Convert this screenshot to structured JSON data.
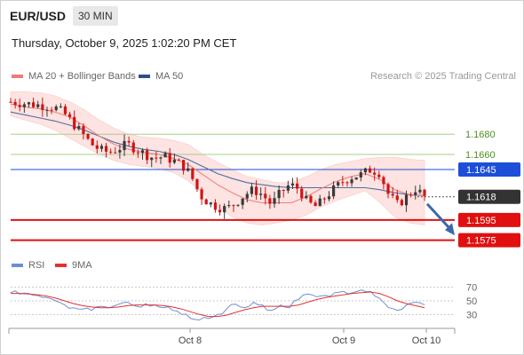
{
  "header": {
    "symbol": "EUR/USD",
    "interval": "30 MIN",
    "timestamp": "Thursday, October 9, 2025 1:02:20 PM CET"
  },
  "legend": {
    "ma_bb": "MA 20 + Bollinger Bands",
    "ma50": "MA 50",
    "copyright": "Research © 2025 Trading Central",
    "rsi": "RSI",
    "rsi_ma": "9MA"
  },
  "colors": {
    "up_candle": "#3a3a3a",
    "down_candle": "#d11414",
    "bollinger_fill": "#fde3e1",
    "ma20": "#f07a75",
    "ma50": "#4c6fa5",
    "resistance": "#a7cf8d",
    "resistance_label": "#4d8f1f",
    "pivot": "#1d4ed8",
    "support": "#e01010",
    "current_price": "#333333",
    "arrow": "#3b6aa6",
    "rsi": "#6b8fd4",
    "rsi_ma": "#e53030"
  },
  "chart_data": [
    {
      "type": "candlestick",
      "title": "EUR/USD 30 MIN",
      "xlabel": "",
      "ylabel": "",
      "x_ticks": [
        "Oct 8",
        "Oct 9",
        "Oct 10"
      ],
      "ylim": [
        1.1565,
        1.1725
      ],
      "grid": false,
      "levels": [
        {
          "label": "1.1680",
          "value": 1.168,
          "kind": "resistance"
        },
        {
          "label": "1.1660",
          "value": 1.166,
          "kind": "resistance"
        },
        {
          "label": "1.1645",
          "value": 1.1645,
          "kind": "pivot"
        },
        {
          "label": "1.1618",
          "value": 1.1618,
          "kind": "current"
        },
        {
          "label": "1.1595",
          "value": 1.1595,
          "kind": "support"
        },
        {
          "label": "1.1575",
          "value": 1.1575,
          "kind": "support"
        }
      ],
      "ma20_close_path": [
        1.171,
        1.1707,
        1.1705,
        1.1702,
        1.1697,
        1.1688,
        1.1678,
        1.167,
        1.1665,
        1.1662,
        1.166,
        1.1656,
        1.165,
        1.164,
        1.163,
        1.1622,
        1.1615,
        1.1612,
        1.1612,
        1.1612,
        1.1618,
        1.1626,
        1.1633,
        1.1638,
        1.1641,
        1.1635,
        1.1625,
        1.162,
        1.1619
      ],
      "bollinger_upper": [
        1.1722,
        1.1722,
        1.1721,
        1.1718,
        1.1712,
        1.1704,
        1.1694,
        1.1686,
        1.168,
        1.1677,
        1.1676,
        1.1674,
        1.167,
        1.166,
        1.1652,
        1.1645,
        1.1638,
        1.1635,
        1.1632,
        1.1632,
        1.1638,
        1.1645,
        1.165,
        1.1653,
        1.1656,
        1.1657,
        1.1657,
        1.1655,
        1.1654
      ],
      "bollinger_lower": [
        1.1698,
        1.1694,
        1.169,
        1.1684,
        1.1676,
        1.1668,
        1.166,
        1.1654,
        1.165,
        1.1648,
        1.1646,
        1.1642,
        1.1634,
        1.1622,
        1.1608,
        1.1598,
        1.1592,
        1.159,
        1.1592,
        1.1595,
        1.16,
        1.1608,
        1.1614,
        1.1619,
        1.1624,
        1.1612,
        1.1598,
        1.1592,
        1.159
      ],
      "ma50": [
        1.1702,
        1.1699,
        1.1696,
        1.1693,
        1.1689,
        1.1684,
        1.1678,
        1.1672,
        1.1668,
        1.1665,
        1.1663,
        1.166,
        1.1655,
        1.1648,
        1.1641,
        1.1636,
        1.1632,
        1.163,
        1.1628,
        1.1627,
        1.1627,
        1.1627,
        1.1627,
        1.1627,
        1.1627,
        1.1625,
        1.1622,
        1.162,
        1.1619
      ],
      "close_path": [
        1.1712,
        1.1711,
        1.171,
        1.1709,
        1.1708,
        1.1706,
        1.17,
        1.169,
        1.168,
        1.167,
        1.1664,
        1.1662,
        1.1666,
        1.167,
        1.1665,
        1.166,
        1.1656,
        1.1658,
        1.1654,
        1.165,
        1.164,
        1.162,
        1.1612,
        1.1608,
        1.1606,
        1.1612,
        1.162,
        1.1625,
        1.162,
        1.161,
        1.1622,
        1.163,
        1.1626,
        1.1612,
        1.1608,
        1.1618,
        1.1626,
        1.1634,
        1.1638,
        1.164,
        1.1645,
        1.1642,
        1.162,
        1.161,
        1.1618,
        1.1626,
        1.1618
      ],
      "forecast_arrow": {
        "from": 1.1618,
        "to": 1.1578
      }
    },
    {
      "type": "line",
      "title": "RSI",
      "series_names": [
        "RSI",
        "9MA"
      ],
      "ylim": [
        20,
        80
      ],
      "y_ticks": [
        70,
        50,
        30
      ],
      "rsi_path": [
        62,
        60,
        61,
        58,
        55,
        50,
        44,
        40,
        38,
        36,
        42,
        40,
        45,
        48,
        42,
        46,
        44,
        40,
        36,
        30,
        24,
        22,
        24,
        30,
        38,
        45,
        40,
        48,
        44,
        36,
        44,
        40,
        52,
        60,
        56,
        58,
        62,
        64,
        62,
        66,
        64,
        54,
        40,
        36,
        44,
        48,
        44
      ],
      "rsi_ma_path": [
        61,
        61,
        60,
        59,
        57,
        54,
        50,
        46,
        43,
        41,
        40,
        40,
        41,
        43,
        44,
        44,
        44,
        43,
        41,
        38,
        34,
        30,
        27,
        27,
        29,
        33,
        37,
        40,
        42,
        42,
        42,
        42,
        44,
        48,
        52,
        55,
        57,
        59,
        61,
        62,
        63,
        61,
        56,
        50,
        46,
        43,
        40
      ]
    }
  ]
}
